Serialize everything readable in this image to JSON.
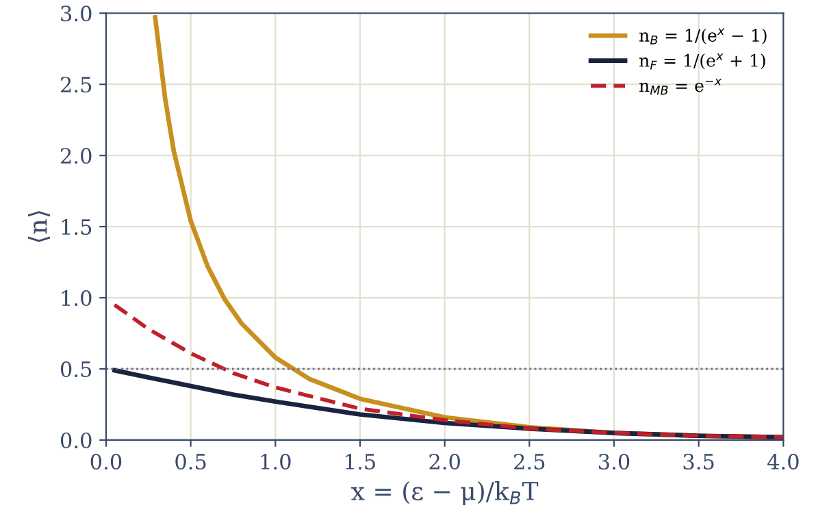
{
  "chart_data": {
    "type": "line",
    "xlabel": "x = (ε − μ)/k$_{B}$T",
    "ylabel": "⟨n⟩",
    "xlim": [
      0,
      4
    ],
    "ylim": [
      0,
      3
    ],
    "xticks": [
      {
        "value": 0,
        "label": "0.0"
      },
      {
        "value": 0.5,
        "label": "0.5"
      },
      {
        "value": 1,
        "label": "1.0"
      },
      {
        "value": 1.5,
        "label": "1.5"
      },
      {
        "value": 2,
        "label": "2.0"
      },
      {
        "value": 2.5,
        "label": "2.5"
      },
      {
        "value": 3,
        "label": "3.0"
      },
      {
        "value": 3.5,
        "label": "3.5"
      },
      {
        "value": 4,
        "label": "4.0"
      }
    ],
    "yticks": [
      {
        "value": 0,
        "label": "0.0"
      },
      {
        "value": 0.5,
        "label": "0.5"
      },
      {
        "value": 1,
        "label": "1.0"
      },
      {
        "value": 1.5,
        "label": "1.5"
      },
      {
        "value": 2,
        "label": "2.0"
      },
      {
        "value": 2.5,
        "label": "2.5"
      },
      {
        "value": 3,
        "label": "3.0"
      }
    ],
    "grid": true,
    "legend": "top right",
    "marker": "none",
    "series": [
      {
        "name": "n$_{B}$ = 1/(e$^{x}$ − 1)",
        "color": "#c8901e",
        "line_style": "solid",
        "x": [
          0.29,
          0.35,
          0.4,
          0.5,
          0.6,
          0.7,
          0.8,
          1.0,
          1.2,
          1.5,
          2.0,
          2.5,
          3.0,
          3.5,
          4.0
        ],
        "values": [
          2.97,
          2.39,
          2.03,
          1.54,
          1.22,
          0.99,
          0.82,
          0.58,
          0.43,
          0.29,
          0.16,
          0.09,
          0.05,
          0.03,
          0.02
        ]
      },
      {
        "name": "n$_{F}$ = 1/(e$^{x}$ + 1)",
        "color": "#1a2340",
        "line_style": "solid",
        "x": [
          0.05,
          0.25,
          0.5,
          0.75,
          1.0,
          1.5,
          2.0,
          2.5,
          3.0,
          3.5,
          4.0
        ],
        "values": [
          0.49,
          0.44,
          0.38,
          0.32,
          0.27,
          0.18,
          0.12,
          0.08,
          0.05,
          0.03,
          0.02
        ]
      },
      {
        "name": "n$_{MB}$ = e$^{−x}$",
        "color": "#c0202a",
        "line_style": "dashed",
        "x": [
          0.05,
          0.25,
          0.5,
          0.75,
          1.0,
          1.5,
          2.0,
          2.5,
          3.0,
          3.5,
          4.0
        ],
        "values": [
          0.95,
          0.78,
          0.61,
          0.47,
          0.37,
          0.22,
          0.14,
          0.08,
          0.05,
          0.03,
          0.02
        ]
      }
    ],
    "ref_lines": [
      {
        "axis": "y",
        "value": 0.5,
        "color": "#6a6a9a",
        "line_style": "dotted"
      }
    ]
  }
}
